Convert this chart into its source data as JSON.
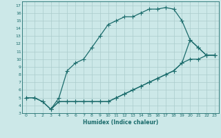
{
  "title": "",
  "xlabel": "Humidex (Indice chaleur)",
  "bg_color": "#cce8e8",
  "line_color": "#1a6b6b",
  "grid_color": "#aacccc",
  "xlim": [
    -0.5,
    23.5
  ],
  "ylim": [
    3,
    17.5
  ],
  "xticks": [
    0,
    1,
    2,
    3,
    4,
    5,
    6,
    7,
    8,
    9,
    10,
    11,
    12,
    13,
    14,
    15,
    16,
    17,
    18,
    19,
    20,
    21,
    22,
    23
  ],
  "yticks": [
    3,
    4,
    5,
    6,
    7,
    8,
    9,
    10,
    11,
    12,
    13,
    14,
    15,
    16,
    17
  ],
  "line1_x": [
    0,
    1,
    2,
    3,
    4,
    5,
    6,
    7,
    8,
    9,
    10,
    11,
    12,
    13,
    14,
    15,
    16,
    17,
    18,
    19,
    20,
    21,
    22,
    23
  ],
  "line1_y": [
    5.0,
    5.0,
    4.5,
    3.5,
    5.0,
    8.5,
    9.5,
    10.0,
    11.5,
    13.0,
    14.5,
    15.0,
    15.5,
    15.5,
    16.0,
    16.5,
    16.5,
    16.7,
    16.5,
    15.0,
    12.5,
    11.5,
    10.5,
    10.5
  ],
  "line2_x": [
    0,
    1,
    2,
    3,
    4,
    5,
    6,
    7,
    8,
    9,
    10,
    11,
    12,
    13,
    14,
    15,
    16,
    17,
    18,
    19,
    20,
    21,
    22,
    23
  ],
  "line2_y": [
    5.0,
    5.0,
    4.5,
    3.5,
    4.5,
    4.5,
    4.5,
    4.5,
    4.5,
    4.5,
    4.5,
    5.0,
    5.5,
    6.0,
    6.5,
    7.0,
    7.5,
    8.0,
    8.5,
    9.5,
    10.0,
    10.0,
    10.5,
    10.5
  ],
  "line3_x": [
    3,
    4,
    5,
    6,
    7,
    8,
    9,
    10,
    11,
    12,
    13,
    14,
    15,
    16,
    17,
    18,
    19,
    20,
    21,
    22,
    23
  ],
  "line3_y": [
    3.5,
    4.5,
    4.5,
    4.5,
    4.5,
    4.5,
    4.5,
    4.5,
    5.0,
    5.5,
    6.0,
    6.5,
    7.0,
    7.5,
    8.0,
    8.5,
    9.5,
    12.5,
    11.5,
    10.5,
    10.5
  ]
}
